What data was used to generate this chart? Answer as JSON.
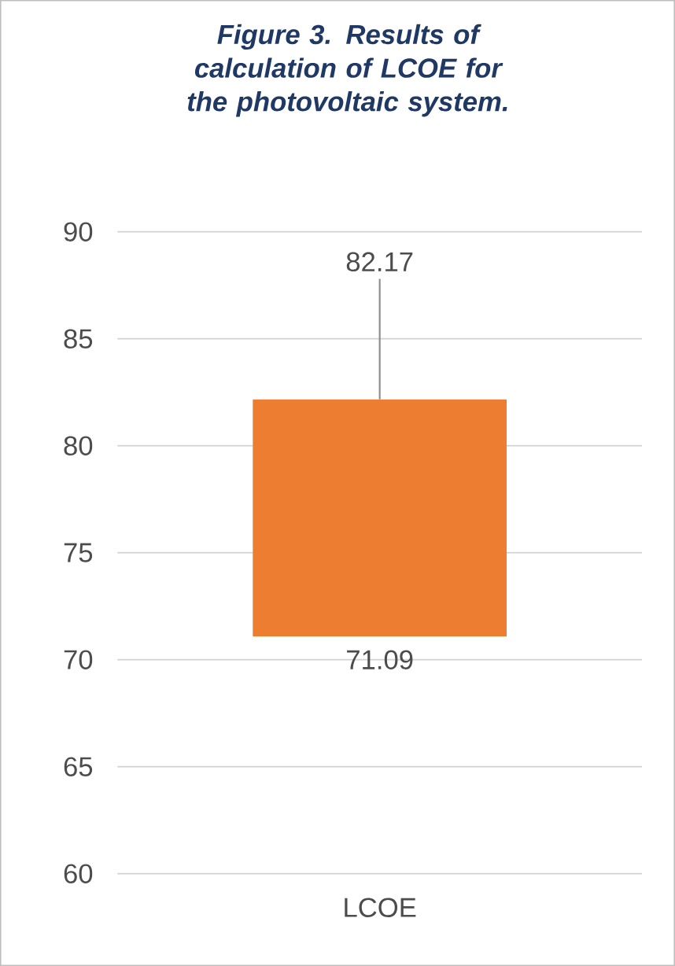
{
  "chart_data": {
    "type": "bar",
    "title": "Figure 3. Results of calculation of LCOE for the photovoltaic system.",
    "categories": [
      "LCOE"
    ],
    "values": [
      11.08
    ],
    "base": [
      71.09
    ],
    "color": "#ed7d31",
    "errors": [
      [
        82.17,
        87.8
      ]
    ],
    "annotations": [
      "82.17",
      "71.09"
    ],
    "ylim": [
      60,
      90
    ],
    "yticks": [
      60,
      65,
      70,
      75,
      80,
      85,
      90
    ],
    "grid": "y"
  }
}
